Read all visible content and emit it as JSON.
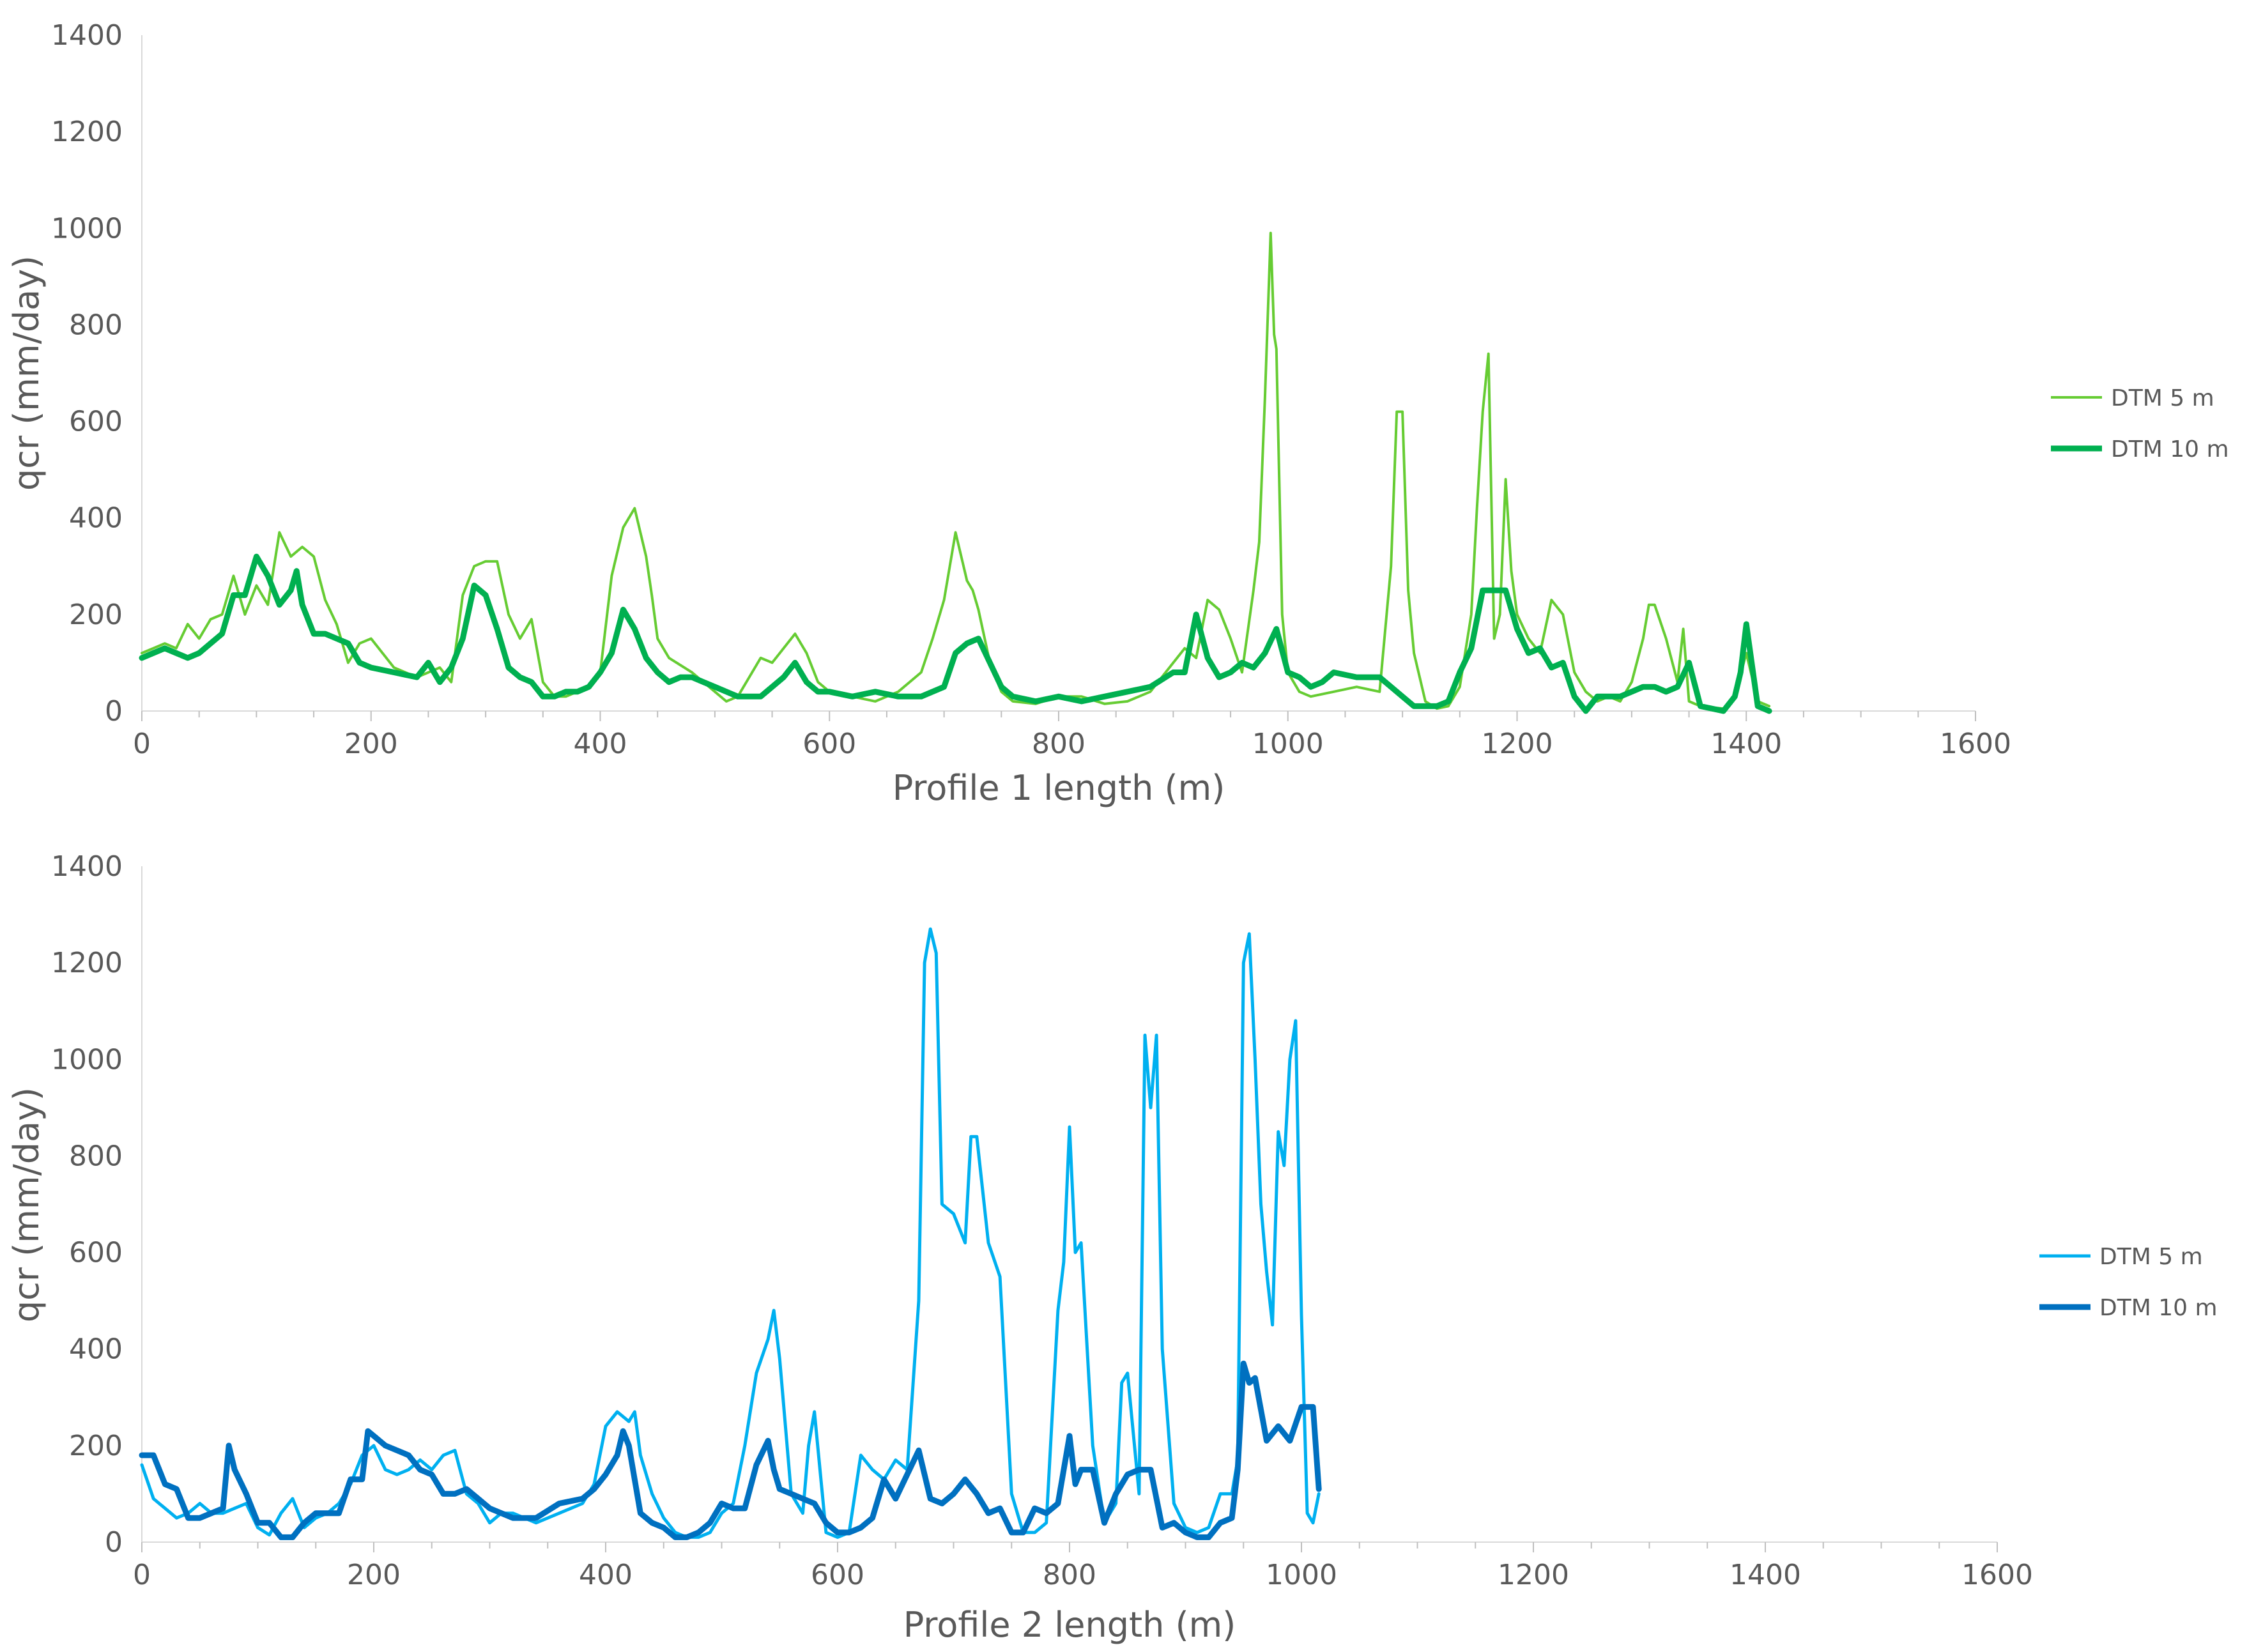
{
  "chart_data": [
    {
      "type": "line",
      "title": "",
      "xlabel": "Profile 1 length (m)",
      "ylabel": "qcr (mm/day)",
      "xlim": [
        0,
        1600
      ],
      "ylim": [
        0,
        1400
      ],
      "xticks": [
        0,
        200,
        400,
        600,
        800,
        1000,
        1200,
        1400,
        1600
      ],
      "yticks": [
        0,
        200,
        400,
        600,
        800,
        1000,
        1200,
        1400
      ],
      "grid": false,
      "legend_position": "right",
      "series": [
        {
          "name": "DTM 5 m",
          "color": "#66cc33",
          "x": [
            0,
            10,
            20,
            30,
            40,
            50,
            60,
            70,
            80,
            90,
            100,
            110,
            120,
            130,
            140,
            150,
            160,
            170,
            180,
            190,
            200,
            220,
            240,
            260,
            270,
            280,
            290,
            300,
            310,
            320,
            330,
            340,
            350,
            360,
            370,
            380,
            390,
            400,
            410,
            420,
            430,
            440,
            445,
            450,
            460,
            480,
            500,
            510,
            520,
            530,
            540,
            550,
            560,
            570,
            580,
            590,
            600,
            620,
            640,
            660,
            680,
            690,
            700,
            710,
            720,
            725,
            730,
            740,
            750,
            760,
            780,
            800,
            820,
            840,
            860,
            880,
            900,
            910,
            920,
            930,
            940,
            950,
            960,
            970,
            975,
            980,
            985,
            988,
            990,
            995,
            1000,
            1010,
            1020,
            1040,
            1060,
            1080,
            1090,
            1095,
            1100,
            1105,
            1110,
            1120,
            1130,
            1140,
            1150,
            1160,
            1165,
            1170,
            1175,
            1180,
            1185,
            1190,
            1195,
            1200,
            1210,
            1220,
            1230,
            1240,
            1250,
            1260,
            1270,
            1280,
            1290,
            1300,
            1310,
            1315,
            1320,
            1330,
            1340,
            1345,
            1350,
            1360,
            1380,
            1390,
            1400,
            1410,
            1420
          ],
          "y": [
            120,
            130,
            140,
            130,
            180,
            150,
            190,
            200,
            280,
            200,
            260,
            220,
            370,
            320,
            340,
            320,
            230,
            180,
            100,
            140,
            150,
            90,
            70,
            90,
            60,
            240,
            300,
            310,
            310,
            200,
            150,
            190,
            60,
            30,
            30,
            40,
            50,
            80,
            280,
            380,
            420,
            320,
            240,
            150,
            110,
            80,
            40,
            20,
            30,
            70,
            110,
            100,
            130,
            160,
            120,
            60,
            40,
            30,
            20,
            40,
            80,
            150,
            230,
            370,
            270,
            250,
            210,
            100,
            40,
            20,
            15,
            30,
            30,
            15,
            20,
            40,
            100,
            130,
            110,
            230,
            210,
            150,
            80,
            250,
            350,
            650,
            990,
            780,
            750,
            200,
            80,
            40,
            30,
            40,
            50,
            40,
            300,
            620,
            620,
            250,
            120,
            20,
            5,
            10,
            50,
            200,
            420,
            620,
            740,
            150,
            200,
            480,
            290,
            200,
            150,
            120,
            230,
            200,
            80,
            40,
            20,
            30,
            20,
            60,
            150,
            220,
            220,
            150,
            60,
            170,
            20,
            10,
            5,
            30,
            120,
            20,
            10
          ]
        },
        {
          "name": "DTM 10 m",
          "color": "#00b050",
          "x": [
            0,
            10,
            20,
            30,
            40,
            50,
            60,
            70,
            80,
            90,
            100,
            110,
            120,
            130,
            135,
            140,
            150,
            160,
            170,
            180,
            190,
            200,
            220,
            240,
            250,
            260,
            270,
            280,
            290,
            300,
            310,
            320,
            330,
            340,
            350,
            360,
            370,
            380,
            390,
            400,
            410,
            420,
            430,
            440,
            450,
            460,
            470,
            480,
            500,
            520,
            540,
            550,
            560,
            570,
            580,
            590,
            600,
            620,
            640,
            660,
            680,
            700,
            710,
            720,
            730,
            740,
            750,
            760,
            780,
            800,
            820,
            840,
            860,
            880,
            900,
            910,
            920,
            930,
            940,
            950,
            960,
            970,
            980,
            990,
            1000,
            1010,
            1020,
            1030,
            1040,
            1060,
            1080,
            1090,
            1100,
            1110,
            1120,
            1130,
            1140,
            1150,
            1160,
            1170,
            1180,
            1190,
            1200,
            1210,
            1220,
            1230,
            1240,
            1250,
            1260,
            1270,
            1280,
            1290,
            1300,
            1310,
            1320,
            1330,
            1340,
            1350,
            1360,
            1380,
            1390,
            1395,
            1400,
            1410,
            1420
          ],
          "y": [
            110,
            120,
            130,
            120,
            110,
            120,
            140,
            160,
            240,
            240,
            320,
            280,
            220,
            250,
            290,
            220,
            160,
            160,
            150,
            140,
            100,
            90,
            80,
            70,
            100,
            60,
            90,
            150,
            260,
            240,
            170,
            90,
            70,
            60,
            30,
            30,
            40,
            40,
            50,
            80,
            120,
            210,
            170,
            110,
            80,
            60,
            70,
            70,
            50,
            30,
            30,
            50,
            70,
            100,
            60,
            40,
            40,
            30,
            40,
            30,
            30,
            50,
            120,
            140,
            150,
            100,
            50,
            30,
            20,
            30,
            20,
            30,
            40,
            50,
            80,
            80,
            200,
            110,
            70,
            80,
            100,
            90,
            120,
            170,
            80,
            70,
            50,
            60,
            80,
            70,
            70,
            50,
            30,
            10,
            10,
            10,
            20,
            80,
            130,
            250,
            250,
            250,
            170,
            120,
            130,
            90,
            100,
            30,
            0,
            30,
            30,
            30,
            40,
            50,
            50,
            40,
            50,
            100,
            10,
            0,
            30,
            80,
            180,
            10,
            0
          ]
        }
      ]
    },
    {
      "type": "line",
      "title": "",
      "xlabel": "Profile 2 length (m)",
      "ylabel": "qcr (mm/day)",
      "xlim": [
        0,
        1600
      ],
      "ylim": [
        0,
        1400
      ],
      "xticks": [
        0,
        200,
        400,
        600,
        800,
        1000,
        1200,
        1400,
        1600
      ],
      "yticks": [
        0,
        200,
        400,
        600,
        800,
        1000,
        1200,
        1400
      ],
      "grid": false,
      "legend_position": "right",
      "series": [
        {
          "name": "DTM 5 m",
          "color": "#00b0f0",
          "x": [
            0,
            10,
            20,
            30,
            40,
            50,
            60,
            70,
            80,
            90,
            100,
            110,
            120,
            130,
            140,
            150,
            160,
            170,
            180,
            190,
            200,
            210,
            220,
            230,
            240,
            250,
            260,
            270,
            280,
            290,
            300,
            310,
            320,
            340,
            360,
            380,
            390,
            400,
            410,
            420,
            425,
            430,
            440,
            450,
            460,
            470,
            480,
            490,
            500,
            510,
            520,
            530,
            540,
            545,
            550,
            560,
            570,
            575,
            580,
            590,
            600,
            610,
            620,
            630,
            640,
            650,
            660,
            670,
            675,
            680,
            685,
            690,
            700,
            710,
            715,
            720,
            730,
            740,
            750,
            760,
            770,
            780,
            790,
            795,
            800,
            805,
            810,
            820,
            830,
            840,
            845,
            850,
            860,
            865,
            870,
            875,
            880,
            890,
            900,
            910,
            920,
            930,
            940,
            945,
            950,
            955,
            960,
            965,
            970,
            975,
            980,
            985,
            990,
            995,
            1000,
            1005,
            1010,
            1015
          ],
          "y": [
            160,
            90,
            70,
            50,
            60,
            80,
            60,
            60,
            70,
            80,
            30,
            15,
            60,
            90,
            30,
            50,
            60,
            80,
            120,
            180,
            200,
            150,
            140,
            150,
            170,
            150,
            180,
            190,
            100,
            80,
            40,
            60,
            60,
            40,
            60,
            80,
            120,
            240,
            270,
            250,
            270,
            180,
            100,
            50,
            20,
            10,
            10,
            20,
            60,
            80,
            200,
            350,
            420,
            480,
            380,
            100,
            60,
            200,
            270,
            20,
            10,
            20,
            180,
            150,
            130,
            170,
            150,
            500,
            1200,
            1270,
            1220,
            700,
            680,
            620,
            840,
            840,
            620,
            550,
            100,
            20,
            20,
            40,
            480,
            580,
            860,
            600,
            620,
            200,
            40,
            80,
            330,
            350,
            100,
            1050,
            900,
            1050,
            400,
            80,
            30,
            20,
            30,
            100,
            100,
            170,
            1200,
            1260,
            1000,
            700,
            560,
            450,
            850,
            780,
            1000,
            1080,
            470,
            60,
            40,
            100
          ],
          "dash": ""
        },
        {
          "name": "DTM 10 m",
          "color": "#0070c0",
          "x": [
            0,
            10,
            20,
            30,
            40,
            50,
            60,
            70,
            75,
            80,
            90,
            100,
            110,
            120,
            130,
            140,
            150,
            160,
            170,
            180,
            190,
            195,
            200,
            210,
            220,
            230,
            240,
            250,
            260,
            270,
            280,
            290,
            300,
            320,
            340,
            360,
            380,
            390,
            400,
            410,
            415,
            420,
            430,
            440,
            450,
            460,
            470,
            480,
            490,
            500,
            510,
            520,
            530,
            540,
            545,
            550,
            560,
            570,
            580,
            590,
            600,
            610,
            620,
            630,
            640,
            650,
            660,
            670,
            680,
            690,
            700,
            710,
            720,
            730,
            740,
            750,
            760,
            770,
            780,
            790,
            800,
            805,
            810,
            820,
            830,
            840,
            850,
            860,
            870,
            880,
            890,
            900,
            910,
            920,
            930,
            940,
            945,
            950,
            955,
            960,
            970,
            980,
            990,
            1000,
            1010,
            1015
          ],
          "y": [
            180,
            180,
            120,
            110,
            50,
            50,
            60,
            70,
            200,
            150,
            100,
            40,
            40,
            10,
            10,
            40,
            60,
            60,
            60,
            130,
            130,
            230,
            220,
            200,
            190,
            180,
            150,
            140,
            100,
            100,
            110,
            90,
            70,
            50,
            50,
            80,
            90,
            110,
            140,
            180,
            230,
            200,
            60,
            40,
            30,
            10,
            10,
            20,
            40,
            80,
            70,
            70,
            160,
            210,
            150,
            110,
            100,
            90,
            80,
            40,
            20,
            20,
            30,
            50,
            130,
            90,
            140,
            190,
            90,
            80,
            100,
            130,
            100,
            60,
            70,
            20,
            20,
            70,
            60,
            80,
            220,
            120,
            150,
            150,
            40,
            100,
            140,
            150,
            150,
            30,
            40,
            20,
            10,
            10,
            40,
            50,
            150,
            370,
            330,
            340,
            210,
            240,
            210,
            280,
            280,
            110
          ]
        }
      ]
    }
  ]
}
